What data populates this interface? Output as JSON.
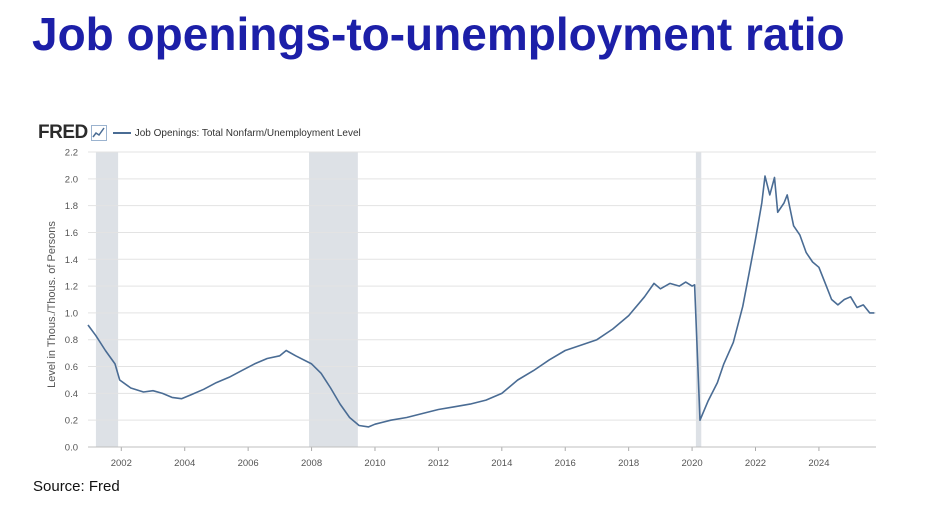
{
  "slide": {
    "title": "Job openings-to-unemployment ratio",
    "source": "Source: Fred",
    "title_color": "#1c1fa8"
  },
  "header": {
    "logo_text": "FRED",
    "logo_icon": "line-chart-icon"
  },
  "chart_data": {
    "type": "line",
    "series": [
      {
        "name": "Job Openings: Total Nonfarm/Unemployment Level",
        "color": "#4a6c94",
        "points": [
          [
            2000.95,
            0.91
          ],
          [
            2001.2,
            0.83
          ],
          [
            2001.5,
            0.72
          ],
          [
            2001.8,
            0.62
          ],
          [
            2001.95,
            0.5
          ],
          [
            2002.3,
            0.44
          ],
          [
            2002.7,
            0.41
          ],
          [
            2003.0,
            0.42
          ],
          [
            2003.3,
            0.4
          ],
          [
            2003.6,
            0.37
          ],
          [
            2003.9,
            0.36
          ],
          [
            2004.2,
            0.39
          ],
          [
            2004.6,
            0.43
          ],
          [
            2005.0,
            0.48
          ],
          [
            2005.4,
            0.52
          ],
          [
            2005.8,
            0.57
          ],
          [
            2006.2,
            0.62
          ],
          [
            2006.6,
            0.66
          ],
          [
            2007.0,
            0.68
          ],
          [
            2007.2,
            0.72
          ],
          [
            2007.5,
            0.68
          ],
          [
            2008.0,
            0.62
          ],
          [
            2008.3,
            0.55
          ],
          [
            2008.6,
            0.44
          ],
          [
            2008.9,
            0.32
          ],
          [
            2009.2,
            0.22
          ],
          [
            2009.5,
            0.16
          ],
          [
            2009.8,
            0.15
          ],
          [
            2010.0,
            0.17
          ],
          [
            2010.5,
            0.2
          ],
          [
            2011.0,
            0.22
          ],
          [
            2011.5,
            0.25
          ],
          [
            2012.0,
            0.28
          ],
          [
            2012.5,
            0.3
          ],
          [
            2013.0,
            0.32
          ],
          [
            2013.5,
            0.35
          ],
          [
            2014.0,
            0.4
          ],
          [
            2014.5,
            0.5
          ],
          [
            2015.0,
            0.57
          ],
          [
            2015.5,
            0.65
          ],
          [
            2016.0,
            0.72
          ],
          [
            2016.5,
            0.76
          ],
          [
            2017.0,
            0.8
          ],
          [
            2017.5,
            0.88
          ],
          [
            2018.0,
            0.98
          ],
          [
            2018.5,
            1.12
          ],
          [
            2018.8,
            1.22
          ],
          [
            2019.0,
            1.18
          ],
          [
            2019.3,
            1.22
          ],
          [
            2019.6,
            1.2
          ],
          [
            2019.8,
            1.23
          ],
          [
            2020.0,
            1.2
          ],
          [
            2020.08,
            1.21
          ],
          [
            2020.25,
            0.2
          ],
          [
            2020.5,
            0.34
          ],
          [
            2020.8,
            0.48
          ],
          [
            2021.0,
            0.62
          ],
          [
            2021.3,
            0.78
          ],
          [
            2021.6,
            1.05
          ],
          [
            2021.8,
            1.3
          ],
          [
            2022.0,
            1.55
          ],
          [
            2022.2,
            1.82
          ],
          [
            2022.3,
            2.02
          ],
          [
            2022.45,
            1.88
          ],
          [
            2022.6,
            2.01
          ],
          [
            2022.7,
            1.75
          ],
          [
            2022.9,
            1.82
          ],
          [
            2023.0,
            1.88
          ],
          [
            2023.2,
            1.65
          ],
          [
            2023.4,
            1.58
          ],
          [
            2023.6,
            1.45
          ],
          [
            2023.8,
            1.38
          ],
          [
            2024.0,
            1.34
          ],
          [
            2024.2,
            1.22
          ],
          [
            2024.4,
            1.1
          ],
          [
            2024.6,
            1.06
          ],
          [
            2024.8,
            1.1
          ],
          [
            2025.0,
            1.12
          ],
          [
            2025.2,
            1.04
          ],
          [
            2025.4,
            1.06
          ],
          [
            2025.6,
            1.0
          ],
          [
            2025.75,
            1.0
          ]
        ]
      }
    ],
    "recessions": [
      [
        2001.2,
        2001.9
      ],
      [
        2007.92,
        2009.46
      ],
      [
        2020.12,
        2020.29
      ]
    ],
    "ylabel": "Level in Thous./Thous. of Persons",
    "ylim": [
      0,
      2.2
    ],
    "xlim": [
      2000.95,
      2025.8
    ],
    "y_ticks": [
      0.0,
      0.2,
      0.4,
      0.6,
      0.8,
      1.0,
      1.2,
      1.4,
      1.6,
      1.8,
      2.0,
      2.2
    ],
    "y_tick_labels": [
      "0.0",
      "0.2",
      "0.4",
      "0.6",
      "0.8",
      "1.0",
      "1.2",
      "1.4",
      "1.6",
      "1.8",
      "2.0",
      "2.2"
    ],
    "x_ticks": [
      2002,
      2004,
      2006,
      2008,
      2010,
      2012,
      2014,
      2016,
      2018,
      2020,
      2022,
      2024
    ],
    "x_tick_labels": [
      "2002",
      "2004",
      "2006",
      "2008",
      "2010",
      "2012",
      "2014",
      "2016",
      "2018",
      "2020",
      "2022",
      "2024"
    ],
    "grid": true,
    "legend": "top-left",
    "recession_color": "#dde1e6",
    "grid_color": "#e3e3e3"
  }
}
